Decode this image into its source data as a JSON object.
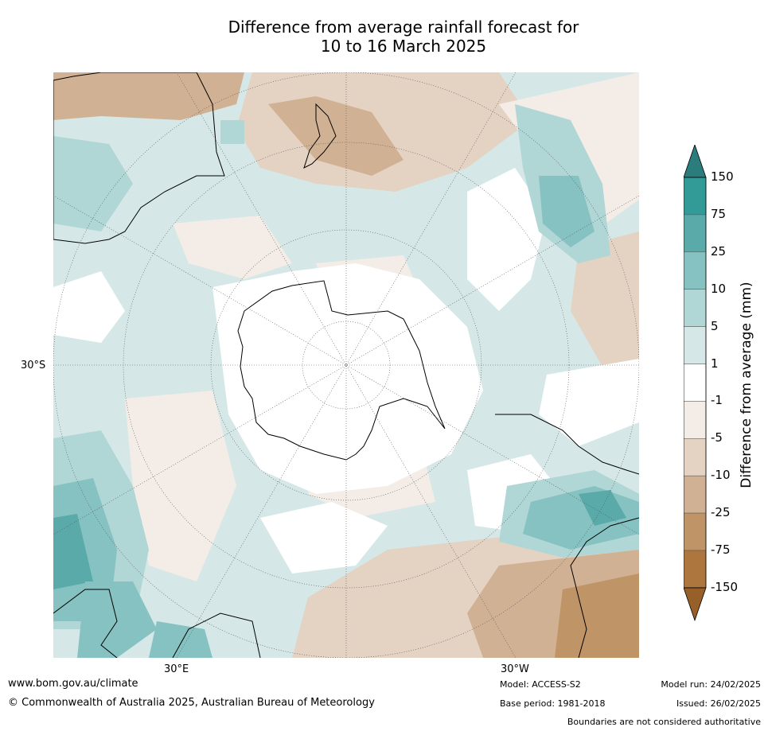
{
  "title_line1": "Difference from average rainfall forecast for",
  "title_line2": "10 to 16 March 2025",
  "map": {
    "lat_label": "30°S",
    "lon_label_left": "30°E",
    "lon_label_right": "30°W"
  },
  "colorbar": {
    "title": "Difference from average (mm)",
    "ticks": [
      "150",
      "75",
      "25",
      "10",
      "5",
      "1",
      "-1",
      "-5",
      "-10",
      "-25",
      "-75",
      "-150"
    ],
    "colors": [
      "#2a7d7c",
      "#339b97",
      "#5aaaa9",
      "#86c2c1",
      "#b0d6d6",
      "#d5e8e7",
      "#ffffff",
      "#f4ece6",
      "#e4d2c3",
      "#d1b193",
      "#bf9466",
      "#ad763f",
      "#966028"
    ]
  },
  "footer": {
    "website": "www.bom.gov.au/climate",
    "copyright": "© Commonwealth of Australia 2025, Australian Bureau of Meteorology",
    "model": "Model: ACCESS-S2",
    "base_period": "Base period: 1981-2018",
    "model_run": "Model run: 24/02/2025",
    "issued": "Issued: 26/02/2025",
    "disclaimer": "Boundaries are not considered authoritative"
  }
}
